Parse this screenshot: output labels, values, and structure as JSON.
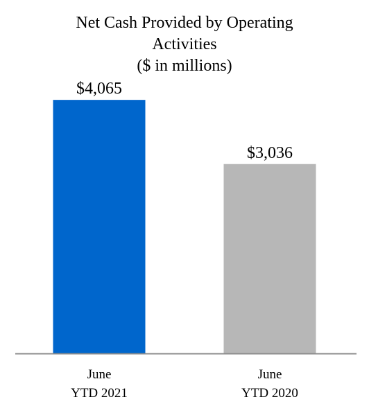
{
  "chart_data": {
    "type": "bar",
    "title_lines": [
      "Net Cash Provided by Operating",
      "Activities",
      "($ in millions)"
    ],
    "categories": [
      [
        "June",
        "YTD 2021"
      ],
      [
        "June",
        "YTD 2020"
      ]
    ],
    "values": [
      4065,
      3036
    ],
    "data_labels": [
      "$4,065",
      "$3,036"
    ],
    "bar_colors": [
      "#0066CC",
      "#B7B7B7"
    ],
    "axis_color": "#8C8C8C",
    "ylim": [
      0,
      4500
    ],
    "grid": false,
    "legend": "none"
  }
}
